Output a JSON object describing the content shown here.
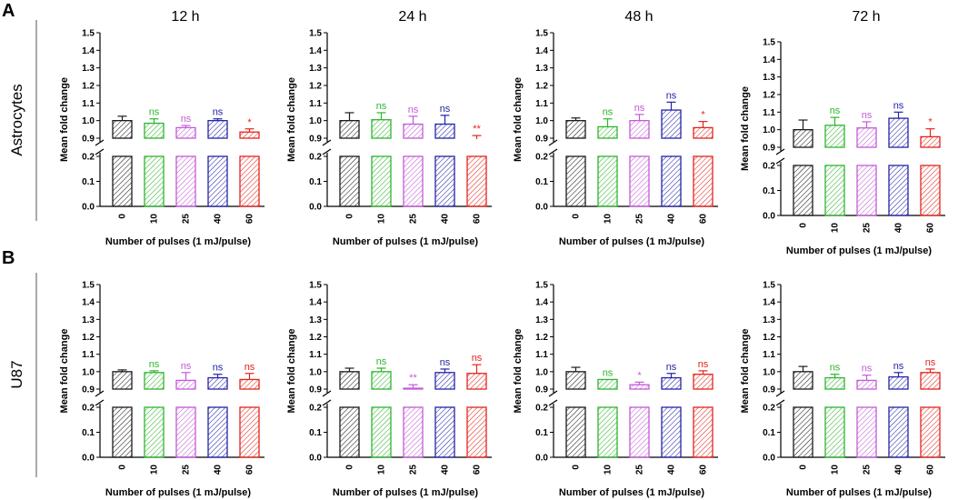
{
  "figure": {
    "rows": [
      {
        "letter": "A",
        "label": "Astrocytes"
      },
      {
        "letter": "B",
        "label": "U87"
      }
    ],
    "y_axis_label": "Mean fold change",
    "x_axis_label": "Number of pulses (1 mJ/pulse)",
    "colors": [
      "#1a1a1a",
      "#2db52d",
      "#c25bd6",
      "#2323a8",
      "#e3241b"
    ]
  },
  "chart_data": [
    {
      "type": "bar",
      "row": 0,
      "title": "12 h",
      "categories": [
        "0",
        "10",
        "25",
        "40",
        "60"
      ],
      "values": [
        1.0,
        0.985,
        0.96,
        1.0,
        0.935
      ],
      "errors": [
        0.025,
        0.025,
        0.012,
        0.01,
        0.018
      ],
      "significance": [
        "",
        "ns",
        "ns",
        "ns",
        "*"
      ],
      "y_ticks": [
        "0.0",
        "0.1",
        "0.2",
        "0.9",
        "1.0",
        "1.1",
        "1.2",
        "1.3",
        "1.4",
        "1.5"
      ],
      "axis_break": [
        0.2,
        0.9
      ]
    },
    {
      "type": "bar",
      "row": 0,
      "title": "24 h",
      "categories": [
        "0",
        "10",
        "25",
        "40",
        "60"
      ],
      "values": [
        1.0,
        1.005,
        0.98,
        0.98,
        0.895
      ],
      "errors": [
        0.045,
        0.04,
        0.045,
        0.05,
        0.02
      ],
      "significance": [
        "",
        "ns",
        "ns",
        "ns",
        "**"
      ],
      "y_ticks": [
        "0.0",
        "0.1",
        "0.2",
        "0.9",
        "1.0",
        "1.1",
        "1.2",
        "1.3",
        "1.4",
        "1.5"
      ],
      "axis_break": [
        0.2,
        0.9
      ]
    },
    {
      "type": "bar",
      "row": 0,
      "title": "48 h",
      "categories": [
        "0",
        "10",
        "25",
        "40",
        "60"
      ],
      "values": [
        1.0,
        0.965,
        1.0,
        1.06,
        0.96
      ],
      "errors": [
        0.015,
        0.045,
        0.035,
        0.045,
        0.035
      ],
      "significance": [
        "",
        "ns",
        "ns",
        "ns",
        "*"
      ],
      "y_ticks": [
        "0.0",
        "0.1",
        "0.2",
        "0.9",
        "1.0",
        "1.1",
        "1.2",
        "1.3",
        "1.4",
        "1.5"
      ],
      "axis_break": [
        0.2,
        0.9
      ]
    },
    {
      "type": "bar",
      "row": 0,
      "title": "72 h",
      "categories": [
        "0",
        "10",
        "25",
        "40",
        "60"
      ],
      "values": [
        1.0,
        1.025,
        1.01,
        1.065,
        0.96
      ],
      "errors": [
        0.055,
        0.045,
        0.035,
        0.035,
        0.045
      ],
      "significance": [
        "",
        "ns",
        "ns",
        "ns",
        "*"
      ],
      "y_ticks": [
        "0.0",
        "0.1",
        "0.2",
        "0.9",
        "1.0",
        "1.1",
        "1.2",
        "1.3",
        "1.4",
        "1.5"
      ],
      "axis_break": [
        0.2,
        0.9
      ]
    },
    {
      "type": "bar",
      "row": 1,
      "title": "",
      "categories": [
        "0",
        "10",
        "25",
        "40",
        "60"
      ],
      "values": [
        1.0,
        0.995,
        0.95,
        0.965,
        0.955
      ],
      "errors": [
        0.01,
        0.01,
        0.045,
        0.02,
        0.035
      ],
      "significance": [
        "",
        "ns",
        "ns",
        "ns",
        "ns"
      ],
      "y_ticks": [
        "0.0",
        "0.1",
        "0.2",
        "0.9",
        "1.0",
        "1.1",
        "1.2",
        "1.3",
        "1.4",
        "1.5"
      ],
      "axis_break": [
        0.2,
        0.9
      ]
    },
    {
      "type": "bar",
      "row": 1,
      "title": "",
      "categories": [
        "0",
        "10",
        "25",
        "40",
        "60"
      ],
      "values": [
        1.0,
        1.0,
        0.905,
        0.995,
        0.99
      ],
      "errors": [
        0.02,
        0.02,
        0.02,
        0.02,
        0.05
      ],
      "significance": [
        "",
        "ns",
        "**",
        "ns",
        "ns"
      ],
      "y_ticks": [
        "0.0",
        "0.1",
        "0.2",
        "0.9",
        "1.0",
        "1.1",
        "1.2",
        "1.3",
        "1.4",
        "1.5"
      ],
      "axis_break": [
        0.2,
        0.9
      ]
    },
    {
      "type": "bar",
      "row": 1,
      "title": "",
      "categories": [
        "0",
        "10",
        "25",
        "40",
        "60"
      ],
      "values": [
        1.0,
        0.955,
        0.925,
        0.965,
        0.985
      ],
      "errors": [
        0.025,
        0.0,
        0.015,
        0.025,
        0.02
      ],
      "significance": [
        "",
        "ns",
        "*",
        "ns",
        "ns"
      ],
      "y_ticks": [
        "0.0",
        "0.1",
        "0.2",
        "0.9",
        "1.0",
        "1.1",
        "1.2",
        "1.3",
        "1.4",
        "1.5"
      ],
      "axis_break": [
        0.2,
        0.9
      ]
    },
    {
      "type": "bar",
      "row": 1,
      "title": "",
      "categories": [
        "0",
        "10",
        "25",
        "40",
        "60"
      ],
      "values": [
        1.0,
        0.965,
        0.95,
        0.97,
        0.995
      ],
      "errors": [
        0.03,
        0.02,
        0.03,
        0.025,
        0.02
      ],
      "significance": [
        "",
        "ns",
        "ns",
        "ns",
        "ns"
      ],
      "y_ticks": [
        "0.0",
        "0.1",
        "0.2",
        "0.9",
        "1.0",
        "1.1",
        "1.2",
        "1.3",
        "1.4",
        "1.5"
      ],
      "axis_break": [
        0.2,
        0.9
      ]
    }
  ]
}
